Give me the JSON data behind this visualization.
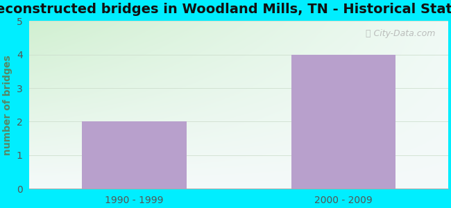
{
  "title": "Reconstructed bridges in Woodland Mills, TN - Historical Statistics",
  "categories": [
    "1990 - 1999",
    "2000 - 2009"
  ],
  "values": [
    2,
    4
  ],
  "bar_color": "#b8a0cc",
  "ylabel": "number of bridges",
  "ylim": [
    0,
    5
  ],
  "yticks": [
    0,
    1,
    2,
    3,
    4,
    5
  ],
  "background_outer": "#00eeff",
  "grid_color": "#ccddcc",
  "title_fontsize": 14,
  "label_fontsize": 10,
  "tick_fontsize": 10,
  "bar_width": 0.5,
  "ylabel_color": "#558866",
  "title_color": "#111111",
  "tick_color": "#555555",
  "watermark": "City-Data.com",
  "bg_top_color": "#f5fafa",
  "bg_bottom_left_color": "#d8f0d8"
}
